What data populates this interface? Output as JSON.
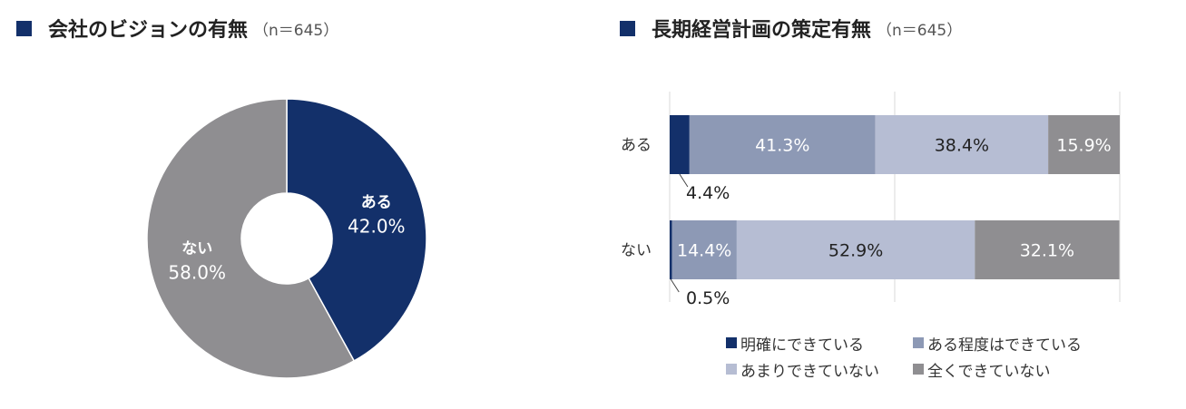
{
  "colors": {
    "title_marker": "#13306a",
    "explicit": "#13306a",
    "somewhat": "#8d99b5",
    "not_much": "#b6bdd3",
    "not_at_all": "#8f8e91",
    "pie_yes": "#13306a",
    "pie_no": "#8f8e91",
    "gridline": "#d9d9d9"
  },
  "pie_title": {
    "main": "会社のビジョンの有無",
    "n": "（n＝645）"
  },
  "bar_title": {
    "main": "長期経営計画の策定有無",
    "n": "（n＝645）"
  },
  "chart_data": [
    {
      "type": "pie",
      "style": "donut",
      "title": "会社のビジョンの有無",
      "subtitle": "（n＝645）",
      "slices": [
        {
          "label": "ある",
          "value": 42.0,
          "value_label": "42.0%",
          "color": "#13306a"
        },
        {
          "label": "ない",
          "value": 58.0,
          "value_label": "58.0%",
          "color": "#8f8e91"
        }
      ]
    },
    {
      "type": "bar",
      "orientation": "horizontal",
      "stacked": true,
      "percent": true,
      "title": "長期経営計画の策定有無",
      "subtitle": "（n＝645）",
      "categories": [
        "ある",
        "ない"
      ],
      "xlim": [
        0,
        100
      ],
      "grid": true,
      "legend_position": "bottom",
      "series": [
        {
          "name": "明確にできている",
          "values": [
            4.4,
            0.5
          ],
          "labels": [
            "4.4%",
            "0.5%"
          ],
          "label_color": "#222222",
          "color": "#13306a"
        },
        {
          "name": "ある程度はできている",
          "values": [
            41.3,
            14.4
          ],
          "labels": [
            "41.3%",
            "14.4%"
          ],
          "label_color": "#ffffff",
          "color": "#8d99b5"
        },
        {
          "name": "あまりできていない",
          "values": [
            38.4,
            52.9
          ],
          "labels": [
            "38.4%",
            "52.9%"
          ],
          "label_color": "#222222",
          "color": "#b6bdd3"
        },
        {
          "name": "全くできていない",
          "values": [
            15.9,
            32.1
          ],
          "labels": [
            "15.9%",
            "32.1%"
          ],
          "label_color": "#ffffff",
          "color": "#8f8e91"
        }
      ]
    }
  ]
}
